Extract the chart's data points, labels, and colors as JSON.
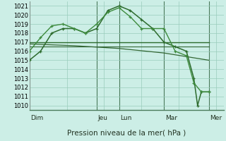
{
  "background_color": "#cceee6",
  "grid_color": "#99ccbb",
  "ylim": [
    1009.5,
    1021.5
  ],
  "yticks": [
    1010,
    1011,
    1012,
    1013,
    1014,
    1015,
    1016,
    1017,
    1018,
    1019,
    1020,
    1021
  ],
  "xlabel": "Pression niveau de la mer( hPa )",
  "xlabel_fontsize": 7.5,
  "tick_fontsize": 6.0,
  "day_labels": [
    "Dim",
    "Jeu",
    "Lun",
    "Mar",
    "Mer"
  ],
  "day_positions": [
    0,
    18,
    24,
    36,
    48
  ],
  "xlim": [
    0,
    52
  ],
  "series_flat1": {
    "x": [
      0,
      48
    ],
    "y": [
      1017,
      1017
    ],
    "color": "#2d6b2d",
    "lw": 1.0
  },
  "series_flat2": {
    "x": [
      0,
      48
    ],
    "y": [
      1016.5,
      1016.5
    ],
    "color": "#336633",
    "lw": 0.8
  },
  "series_decline": {
    "x": [
      0,
      12,
      24,
      36,
      48
    ],
    "y": [
      1016.8,
      1016.6,
      1016.3,
      1015.8,
      1015.0
    ],
    "color": "#336633",
    "lw": 0.9
  },
  "series_main": {
    "x": [
      0,
      3,
      6,
      9,
      12,
      15,
      18,
      21,
      24,
      27,
      30,
      33,
      36,
      39,
      42,
      44,
      45,
      46,
      48
    ],
    "y": [
      1015.0,
      1016.0,
      1018.0,
      1018.5,
      1018.5,
      1018.0,
      1018.5,
      1020.5,
      1021.0,
      1020.5,
      1019.5,
      1018.5,
      1017.0,
      1016.5,
      1016.0,
      1013.0,
      1010.0,
      1011.5,
      1011.5
    ],
    "color": "#2d6b2d",
    "lw": 1.1,
    "marker": "+"
  },
  "series_upper": {
    "x": [
      0,
      3,
      6,
      9,
      12,
      15,
      18,
      21,
      24,
      27,
      30,
      33,
      36,
      39,
      42,
      44,
      46,
      48
    ],
    "y": [
      1016.0,
      1017.5,
      1018.8,
      1019.0,
      1018.5,
      1018.0,
      1019.0,
      1020.3,
      1020.8,
      1019.8,
      1018.5,
      1018.5,
      1018.5,
      1016.0,
      1015.5,
      1012.5,
      1011.5,
      1011.5
    ],
    "color": "#3d8b3d",
    "lw": 1.0,
    "marker": "+"
  },
  "vline_color": "#4a7a5a",
  "vline_lw": 0.8,
  "spine_color": "#4a7a5a"
}
